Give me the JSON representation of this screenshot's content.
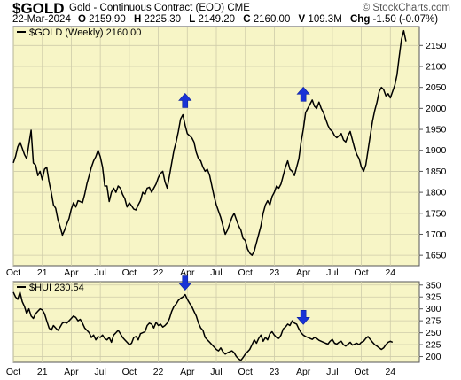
{
  "header": {
    "symbol": "$GOLD",
    "name": "Gold - Continuous Contract (EOD)",
    "exchange": "CME",
    "date": "22-Mar-2024",
    "brand": "© StockCharts.com",
    "quotes": [
      {
        "k": "O",
        "v": "2159.90"
      },
      {
        "k": "H",
        "v": "2225.30"
      },
      {
        "k": "L",
        "v": "2149.20"
      },
      {
        "k": "C",
        "v": "2160.00"
      },
      {
        "k": "V",
        "v": "109.3M"
      },
      {
        "k": "Chg",
        "v": "-1.50 (-0.07%)"
      }
    ]
  },
  "colors": {
    "panel_bg": "#f7f5c6",
    "line": "#000000",
    "grid": "#cfccaa",
    "arrow": "#1a33d6"
  },
  "chart_data": [
    {
      "type": "line",
      "panel": "upper",
      "legend": "$GOLD (Weekly) 2160.00",
      "yticks": [
        1650,
        1700,
        1750,
        1800,
        1850,
        1900,
        1950,
        2000,
        2050,
        2100,
        2150
      ],
      "ylim": [
        1625,
        2195
      ],
      "xticks": [
        "Oct",
        "21",
        "Apr",
        "Jul",
        "Oct",
        "22",
        "Apr",
        "Jul",
        "Oct",
        "23",
        "Apr",
        "Jul",
        "Oct",
        "24"
      ],
      "x_tick_weeks": [
        0,
        13,
        26,
        39,
        52,
        65,
        78,
        91,
        104,
        117,
        130,
        143,
        156,
        169
      ],
      "series": [
        {
          "values": [
            1870,
            1885,
            1908,
            1920,
            1905,
            1890,
            1880,
            1915,
            1948,
            1870,
            1865,
            1840,
            1850,
            1830,
            1855,
            1860,
            1825,
            1800,
            1770,
            1762,
            1735,
            1718,
            1698,
            1710,
            1725,
            1738,
            1760,
            1775,
            1765,
            1780,
            1778,
            1775,
            1795,
            1820,
            1840,
            1860,
            1875,
            1885,
            1900,
            1885,
            1860,
            1815,
            1815,
            1778,
            1800,
            1810,
            1800,
            1815,
            1810,
            1795,
            1785,
            1765,
            1775,
            1768,
            1760,
            1758,
            1770,
            1780,
            1800,
            1795,
            1810,
            1812,
            1800,
            1810,
            1820,
            1835,
            1845,
            1850,
            1825,
            1810,
            1840,
            1870,
            1900,
            1920,
            1945,
            1975,
            1985,
            1960,
            1940,
            1935,
            1930,
            1920,
            1895,
            1880,
            1875,
            1860,
            1850,
            1855,
            1840,
            1815,
            1790,
            1770,
            1755,
            1740,
            1720,
            1700,
            1710,
            1725,
            1740,
            1750,
            1735,
            1720,
            1710,
            1690,
            1685,
            1665,
            1655,
            1650,
            1660,
            1680,
            1700,
            1720,
            1750,
            1770,
            1780,
            1770,
            1790,
            1800,
            1815,
            1810,
            1820,
            1840,
            1860,
            1875,
            1855,
            1850,
            1840,
            1860,
            1880,
            1920,
            1950,
            1990,
            2000,
            2010,
            2020,
            2005,
            2000,
            2015,
            2000,
            1990,
            1975,
            1960,
            1950,
            1945,
            1935,
            1930,
            1935,
            1940,
            1925,
            1920,
            1935,
            1945,
            1925,
            1905,
            1890,
            1880,
            1860,
            1850,
            1865,
            1900,
            1935,
            1970,
            1995,
            2015,
            2040,
            2050,
            2045,
            2030,
            2035,
            2025,
            2040,
            2055,
            2080,
            2125,
            2165,
            2185,
            2160
          ]
        }
      ],
      "markers": [
        {
          "week": 77,
          "direction": "up"
        },
        {
          "week": 130,
          "direction": "up"
        },
        {
          "week": 179,
          "direction": "down"
        }
      ]
    },
    {
      "type": "line",
      "panel": "lower",
      "legend": "$HUI 230.54",
      "yticks": [
        200,
        225,
        250,
        275,
        300,
        325,
        350
      ],
      "ylim": [
        188,
        357
      ],
      "xticks": [
        "Oct",
        "21",
        "Apr",
        "Jul",
        "Oct",
        "22",
        "Apr",
        "Jul",
        "Oct",
        "23",
        "Apr",
        "Jul",
        "Oct",
        "24"
      ],
      "x_tick_weeks": [
        0,
        13,
        26,
        39,
        52,
        65,
        78,
        91,
        104,
        117,
        130,
        143,
        156,
        169
      ],
      "series": [
        {
          "values": [
            335,
            325,
            320,
            335,
            315,
            305,
            290,
            300,
            285,
            280,
            290,
            295,
            300,
            298,
            290,
            275,
            260,
            255,
            265,
            260,
            255,
            262,
            270,
            272,
            270,
            275,
            280,
            285,
            282,
            275,
            278,
            270,
            260,
            255,
            250,
            240,
            245,
            235,
            242,
            240,
            245,
            238,
            235,
            240,
            230,
            245,
            250,
            255,
            248,
            240,
            235,
            230,
            225,
            228,
            240,
            242,
            235,
            248,
            250,
            252,
            265,
            270,
            268,
            260,
            272,
            265,
            268,
            262,
            265,
            270,
            280,
            295,
            305,
            310,
            318,
            322,
            325,
            330,
            320,
            312,
            305,
            295,
            285,
            270,
            260,
            255,
            240,
            235,
            230,
            225,
            220,
            215,
            212,
            218,
            210,
            205,
            208,
            210,
            212,
            208,
            200,
            195,
            192,
            198,
            205,
            210,
            215,
            225,
            235,
            228,
            238,
            245,
            232,
            240,
            235,
            248,
            252,
            245,
            240,
            238,
            245,
            258,
            262,
            268,
            265,
            275,
            270,
            268,
            258,
            250,
            245,
            242,
            240,
            238,
            236,
            240,
            238,
            234,
            232,
            230,
            228,
            226,
            232,
            236,
            228,
            226,
            230,
            232,
            225,
            222,
            226,
            230,
            224,
            226,
            228,
            225,
            230,
            232,
            238,
            242,
            236,
            230,
            225,
            222,
            218,
            215,
            218,
            225,
            230,
            232,
            230
          ]
        }
      ],
      "markers": [
        {
          "week": 77,
          "direction": "down"
        },
        {
          "week": 130,
          "direction": "down"
        },
        {
          "week": 175,
          "direction": "down"
        }
      ]
    }
  ]
}
